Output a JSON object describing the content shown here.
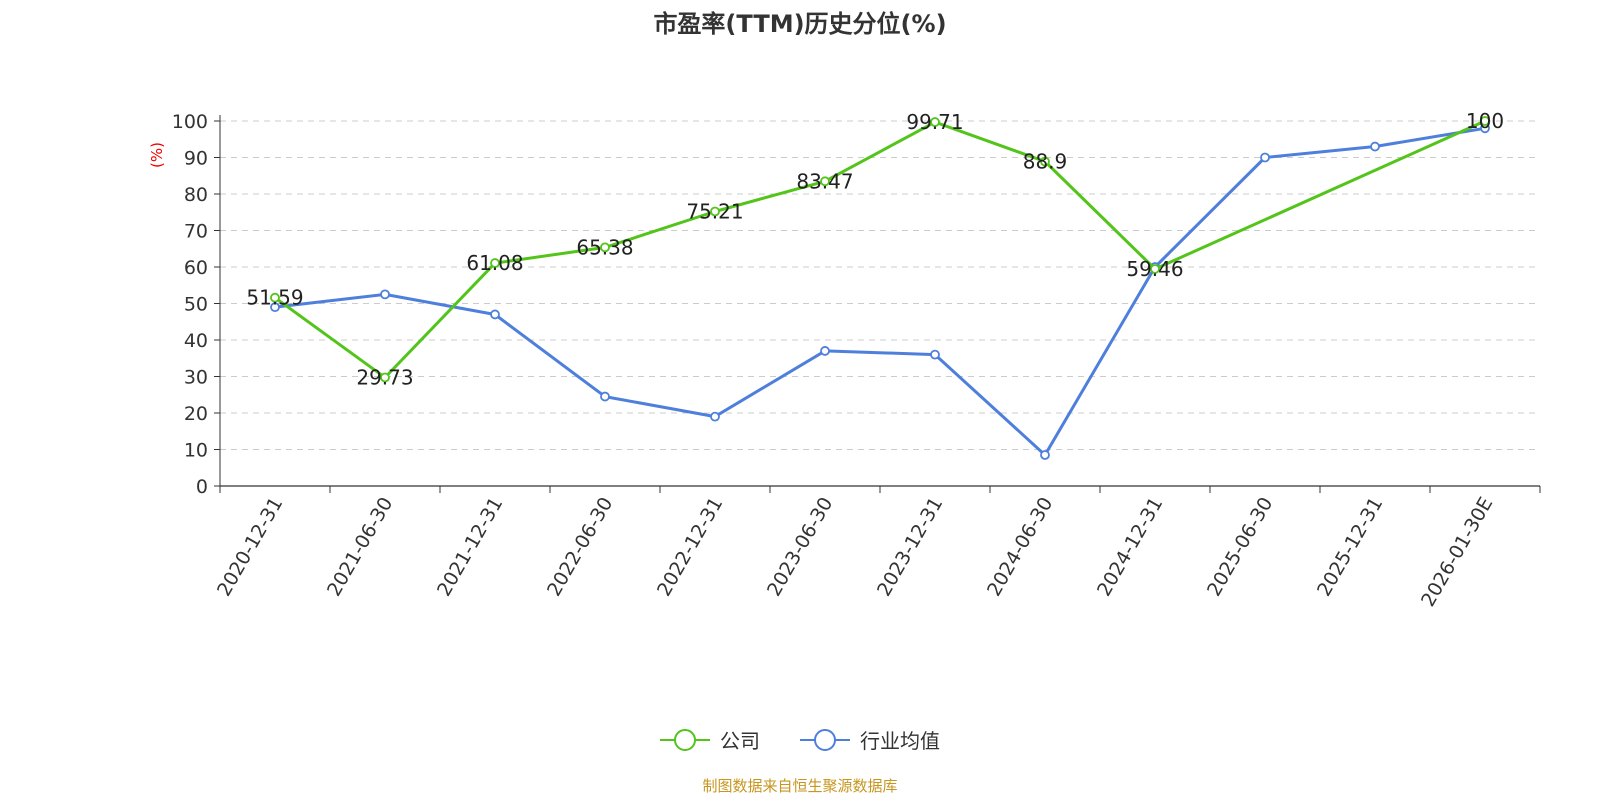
{
  "chart_data": {
    "type": "line",
    "title": "市盈率(TTM)历史分位(%)",
    "y_unit": "(%)",
    "ylim": [
      0,
      100
    ],
    "y_ticks": [
      0,
      10,
      20,
      30,
      40,
      50,
      60,
      70,
      80,
      90,
      100
    ],
    "grid": true,
    "legend_position": "bottom-center",
    "categories": [
      "2020-12-31",
      "2021-06-30",
      "2021-12-31",
      "2022-06-30",
      "2022-12-31",
      "2023-06-30",
      "2023-12-31",
      "2024-06-30",
      "2024-12-31",
      "2025-06-30",
      "2025-12-31",
      "2026-01-30E"
    ],
    "series": [
      {
        "name": "公司",
        "color": "#52c41a",
        "values": [
          51.59,
          29.73,
          61.08,
          65.38,
          75.21,
          83.47,
          99.71,
          88.9,
          59.46,
          null,
          null,
          100
        ],
        "labels": [
          "51.59",
          "29.73",
          "61.08",
          "65.38",
          "75.21",
          "83.47",
          "99.71",
          "88.9",
          "59.46",
          null,
          null,
          "100"
        ]
      },
      {
        "name": "行业均值",
        "color": "#4e7fdc",
        "values": [
          49,
          52.5,
          47,
          24.5,
          19,
          37,
          36,
          8.5,
          60,
          90,
          93,
          98
        ]
      }
    ],
    "source": "制图数据来自恒生聚源数据库"
  }
}
